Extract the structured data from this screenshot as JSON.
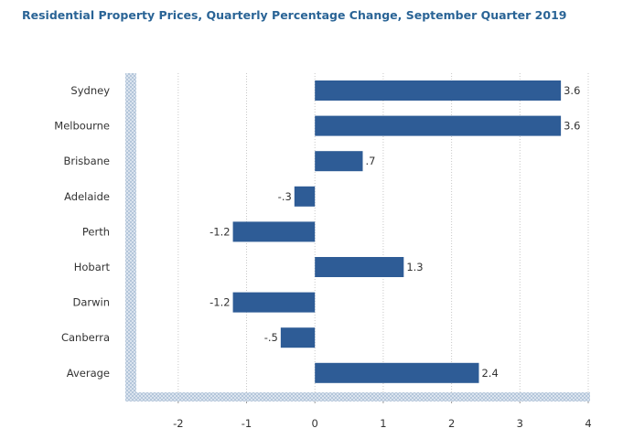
{
  "title": "Residential Property Prices, Quarterly Percentage Change, September Quarter 2019",
  "colors": {
    "bar": "#2e5c96",
    "title": "#2a6496",
    "axis_band": "#c5d3e3",
    "grid": "#c8c8c8"
  },
  "chart_data": {
    "type": "bar",
    "orientation": "horizontal",
    "title": "Residential Property Prices, Quarterly Percentage Change, September Quarter 2019",
    "categories": [
      "Sydney",
      "Melbourne",
      "Brisbane",
      "Adelaide",
      "Perth",
      "Hobart",
      "Darwin",
      "Canberra",
      "Average"
    ],
    "values": [
      3.6,
      3.6,
      0.7,
      -0.3,
      -1.2,
      1.3,
      -1.2,
      -0.5,
      2.4
    ],
    "value_labels": [
      "3.6",
      "3.6",
      ".7",
      "-.3",
      "-1.2",
      "1.3",
      "-1.2",
      "-.5",
      "2.4"
    ],
    "xlim": [
      -2.6,
      4
    ],
    "xticks": [
      -2,
      -1,
      0,
      1,
      2,
      3,
      4
    ],
    "xtick_labels": [
      "-2",
      "-1",
      "0",
      "1",
      "2",
      "3",
      "4"
    ],
    "grid": true,
    "xlabel": "",
    "ylabel": ""
  }
}
